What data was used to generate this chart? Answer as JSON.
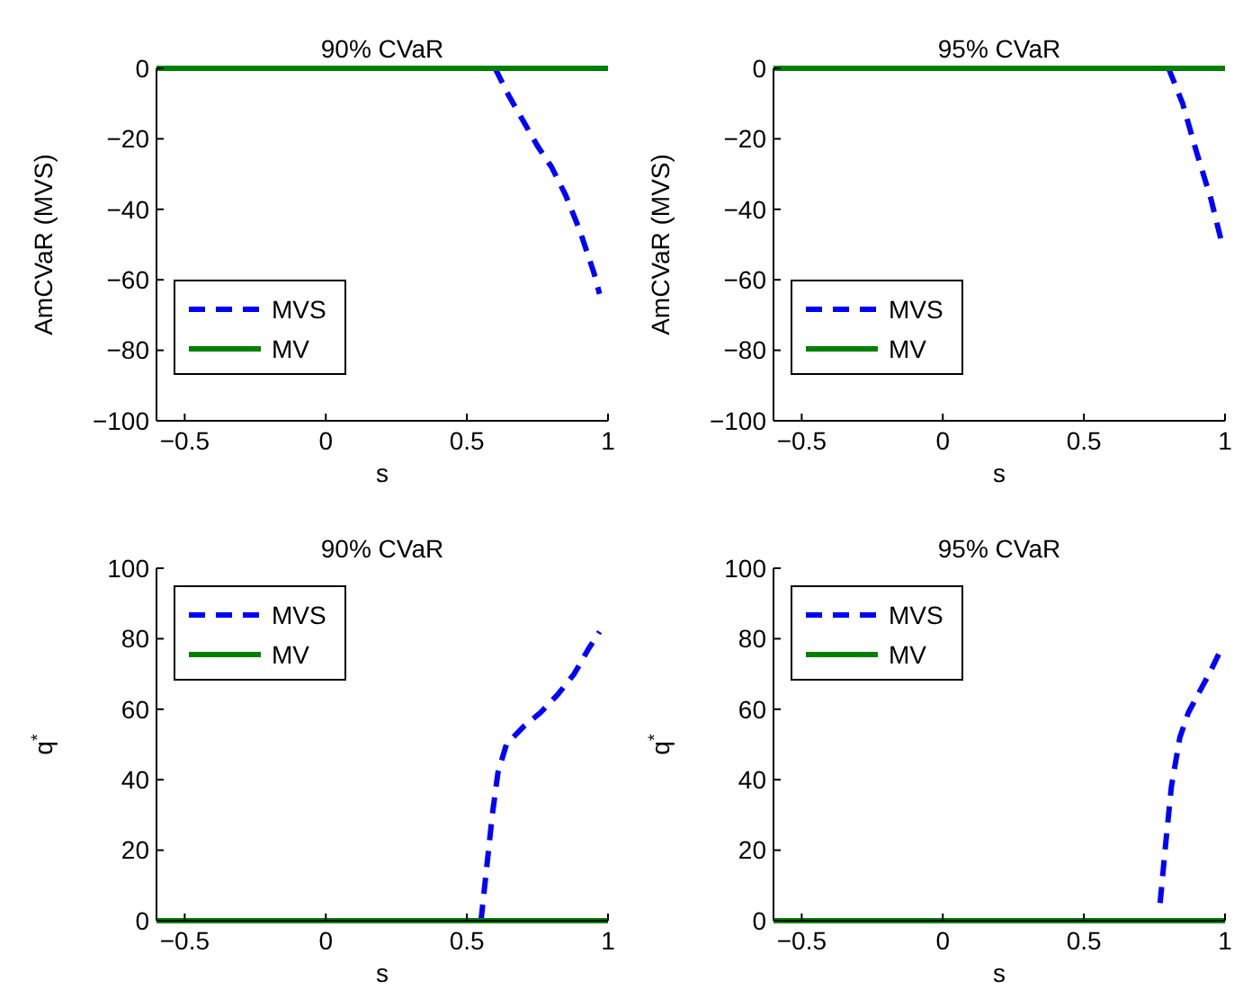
{
  "chart_data": [
    {
      "type": "line",
      "title": "90% CVaR",
      "xlabel": "s",
      "ylabel": "AmCVaR (MVS)",
      "xlim": [
        -0.6,
        1
      ],
      "xticks": [
        -0.5,
        0,
        0.5,
        1
      ],
      "ylim": [
        -100,
        0
      ],
      "yticks": [
        -100,
        -80,
        -60,
        -40,
        -20,
        0
      ],
      "legend": "bottom left",
      "series": [
        {
          "name": "MVS",
          "color": "#0000ff",
          "line_style": "dashed",
          "x": [
            0.6,
            0.65,
            0.7,
            0.75,
            0.8,
            0.85,
            0.9,
            0.95,
            0.97
          ],
          "values": [
            0,
            -8,
            -15,
            -22,
            -28,
            -36,
            -46,
            -58,
            -64
          ]
        },
        {
          "name": "MV",
          "color": "#008000",
          "line_style": "solid",
          "x": [
            -0.6,
            1
          ],
          "values": [
            0,
            0
          ]
        }
      ]
    },
    {
      "type": "line",
      "title": "95% CVaR",
      "xlabel": "s",
      "ylabel": "AmCVaR (MVS)",
      "xlim": [
        -0.6,
        1
      ],
      "xticks": [
        -0.5,
        0,
        0.5,
        1
      ],
      "ylim": [
        -100,
        0
      ],
      "yticks": [
        -100,
        -80,
        -60,
        -40,
        -20,
        0
      ],
      "legend": "bottom left",
      "series": [
        {
          "name": "MVS",
          "color": "#0000ff",
          "line_style": "dashed",
          "x": [
            0.8,
            0.85,
            0.9,
            0.95,
            0.99
          ],
          "values": [
            0,
            -10,
            -24,
            -37,
            -50
          ]
        },
        {
          "name": "MV",
          "color": "#008000",
          "line_style": "solid",
          "x": [
            -0.6,
            1
          ],
          "values": [
            0,
            0
          ]
        }
      ]
    },
    {
      "type": "line",
      "title": "90% CVaR",
      "xlabel": "s",
      "ylabel": "q$^{*}$",
      "xlim": [
        -0.6,
        1
      ],
      "xticks": [
        -0.5,
        0,
        0.5,
        1
      ],
      "ylim": [
        0,
        100
      ],
      "yticks": [
        0,
        20,
        40,
        60,
        80,
        100
      ],
      "legend": "top left",
      "series": [
        {
          "name": "MVS",
          "color": "#0000ff",
          "line_style": "dashed",
          "x": [
            0.55,
            0.57,
            0.59,
            0.61,
            0.64,
            0.7,
            0.76,
            0.82,
            0.88,
            0.93,
            0.97
          ],
          "values": [
            0,
            15,
            30,
            42,
            50,
            55,
            59,
            64,
            70,
            77,
            82
          ]
        },
        {
          "name": "MV",
          "color": "#008000",
          "line_style": "solid",
          "x": [
            -0.6,
            1
          ],
          "values": [
            0,
            0
          ]
        }
      ]
    },
    {
      "type": "line",
      "title": "95% CVaR",
      "xlabel": "s",
      "ylabel": "q$^{*}$",
      "xlim": [
        -0.6,
        1
      ],
      "xticks": [
        -0.5,
        0,
        0.5,
        1
      ],
      "ylim": [
        0,
        100
      ],
      "yticks": [
        0,
        20,
        40,
        60,
        80,
        100
      ],
      "legend": "top left",
      "series": [
        {
          "name": "MVS",
          "color": "#0000ff",
          "line_style": "dashed",
          "x": [
            0.77,
            0.79,
            0.81,
            0.84,
            0.87,
            0.91,
            0.95,
            0.98
          ],
          "values": [
            5,
            22,
            38,
            52,
            59,
            65,
            71,
            76
          ]
        },
        {
          "name": "MV",
          "color": "#008000",
          "line_style": "solid",
          "x": [
            -0.6,
            1
          ],
          "values": [
            0,
            0
          ]
        }
      ]
    }
  ]
}
